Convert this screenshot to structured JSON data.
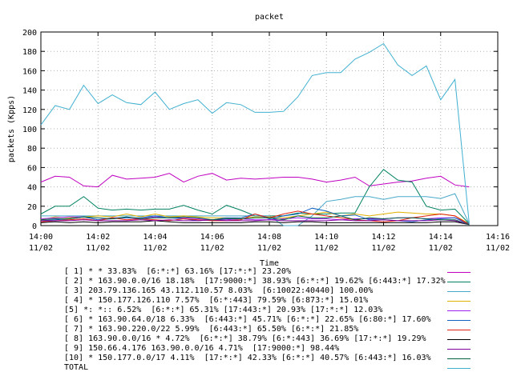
{
  "chart_data": {
    "type": "line",
    "title": "packet",
    "xlabel": "Time",
    "ylabel": "packets (Kpps)",
    "ylim": [
      0,
      200
    ],
    "yticks": [
      0,
      20,
      40,
      60,
      80,
      100,
      120,
      140,
      160,
      180,
      200
    ],
    "xlim": [
      "14:00",
      "14:16"
    ],
    "xticks": [
      {
        "time": "14:00",
        "date": "11/02"
      },
      {
        "time": "14:02",
        "date": "11/02"
      },
      {
        "time": "14:04",
        "date": "11/02"
      },
      {
        "time": "14:06",
        "date": "11/02"
      },
      {
        "time": "14:08",
        "date": "11/02"
      },
      {
        "time": "14:10",
        "date": "11/02"
      },
      {
        "time": "14:12",
        "date": "11/02"
      },
      {
        "time": "14:14",
        "date": "11/02"
      },
      {
        "time": "14:16",
        "date": "11/02"
      }
    ],
    "x": [
      "14:00:00",
      "14:00:30",
      "14:01:00",
      "14:01:30",
      "14:02:00",
      "14:02:30",
      "14:03:00",
      "14:03:30",
      "14:04:00",
      "14:04:30",
      "14:05:00",
      "14:05:30",
      "14:06:00",
      "14:06:30",
      "14:07:00",
      "14:07:30",
      "14:08:00",
      "14:08:30",
      "14:09:00",
      "14:09:30",
      "14:10:00",
      "14:10:30",
      "14:11:00",
      "14:11:30",
      "14:12:00",
      "14:12:30",
      "14:13:00",
      "14:13:30",
      "14:14:00",
      "14:14:30",
      "14:15:00"
    ],
    "grid": true,
    "legend_position": "bottom",
    "series": [
      {
        "name": "[ 1] * * 33.83%  [6:*:*] 63.16% [17:*:*] 23.20%",
        "color": "#c000c0",
        "values": [
          45,
          51,
          50,
          41,
          40,
          52,
          48,
          49,
          50,
          54,
          45,
          51,
          54,
          47,
          49,
          48,
          49,
          50,
          50,
          48,
          45,
          47,
          50,
          41,
          43,
          45,
          46,
          49,
          51,
          42,
          40
        ]
      },
      {
        "name": "[ 2] * 163.90.0.0/16 18.18%  [17:9000:*] 38.93% [6:*:*] 19.62% [6:443:*] 17.32%",
        "color": "#008060",
        "values": [
          12,
          20,
          20,
          30,
          18,
          16,
          17,
          16,
          17,
          17,
          21,
          16,
          12,
          21,
          16,
          10,
          10,
          10,
          13,
          12,
          12,
          13,
          13,
          40,
          58,
          47,
          45,
          20,
          16,
          17,
          2
        ]
      },
      {
        "name": "[ 3] 203.79.136.165 43.112.110.57 8.03%  [6:10022:40440] 100.00%",
        "color": "#48a8c8",
        "values": [
          10,
          10,
          10,
          10,
          10,
          10,
          10,
          10,
          10,
          10,
          10,
          10,
          10,
          10,
          10,
          10,
          10,
          0,
          0,
          10,
          25,
          27,
          30,
          30,
          27,
          30,
          30,
          30,
          28,
          33,
          2
        ]
      },
      {
        "name": "[ 4] * 150.177.126.110 7.57%  [6:*:443] 79.59% [6:873:*] 15.01%",
        "color": "#e0b000",
        "values": [
          6,
          9,
          8,
          9,
          10,
          9,
          12,
          9,
          12,
          9,
          10,
          9,
          8,
          8,
          7,
          9,
          9,
          8,
          10,
          12,
          14,
          10,
          12,
          10,
          12,
          14,
          13,
          12,
          12,
          10,
          2
        ]
      },
      {
        "name": "[5] *: *:: 6.52%  [6:*:*] 65.31% [17:443:*] 20.93% [17:*:*] 12.03%",
        "color": "#a020f0",
        "values": [
          7,
          8,
          9,
          9,
          6,
          8,
          8,
          7,
          9,
          8,
          8,
          7,
          6,
          6,
          7,
          6,
          6,
          7,
          8,
          7,
          7,
          6,
          7,
          7,
          7,
          8,
          8,
          7,
          8,
          8,
          1
        ]
      },
      {
        "name": "[ 6] * 163.90.64.0/18 6.33%  [6:443:*] 45.71% [6:*:*] 22.65% [6:80:*] 17.60%",
        "color": "#1060c0",
        "values": [
          5,
          6,
          7,
          9,
          6,
          7,
          8,
          8,
          10,
          8,
          7,
          5,
          6,
          8,
          8,
          12,
          7,
          10,
          12,
          18,
          15,
          10,
          11,
          6,
          6,
          5,
          4,
          6,
          7,
          8,
          2
        ]
      },
      {
        "name": "[ 7] * 163.90.220.0/22 5.99%  [6:443:*] 65.50% [6:*:*] 21.85%",
        "color": "#e02010",
        "values": [
          4,
          5,
          6,
          7,
          5,
          8,
          6,
          7,
          6,
          5,
          7,
          6,
          5,
          5,
          6,
          12,
          8,
          12,
          15,
          12,
          10,
          8,
          6,
          5,
          4,
          5,
          8,
          10,
          12,
          10,
          1
        ]
      },
      {
        "name": "[ 8] 163.90.0.0/16 * 4.72%  [6:*:*] 38.79% [6:*:443] 36.69% [17:*:*] 19.29%",
        "color": "#000000",
        "values": [
          3,
          4,
          3,
          4,
          3,
          4,
          4,
          4,
          5,
          4,
          3,
          3,
          3,
          3,
          3,
          4,
          4,
          3,
          4,
          4,
          3,
          3,
          3,
          3,
          3,
          3,
          3,
          3,
          4,
          4,
          1
        ]
      },
      {
        "name": "[ 9] 150.66.4.176 163.90.0.0/16 4.71%  [17:9000:*] 98.44%",
        "color": "#8000a0",
        "values": [
          5,
          5,
          5,
          6,
          5,
          5,
          5,
          6,
          5,
          6,
          5,
          5,
          6,
          5,
          5,
          5,
          6,
          5,
          5,
          5,
          5,
          6,
          5,
          5,
          6,
          5,
          5,
          5,
          6,
          5,
          1
        ]
      },
      {
        "name": "[10] * 150.177.0.0/17 4.11%  [17:*:*] 42.33% [6:*:*] 40.57% [6:443:*] 16.03%",
        "color": "#006040",
        "values": [
          6,
          7,
          7,
          9,
          8,
          7,
          9,
          7,
          8,
          8,
          9,
          8,
          6,
          7,
          7,
          8,
          8,
          6,
          10,
          8,
          8,
          10,
          6,
          8,
          7,
          8,
          8,
          7,
          6,
          6,
          1
        ]
      },
      {
        "name": "TOTAL",
        "color": "#40b0d0",
        "values": [
          104,
          124,
          120,
          145,
          126,
          135,
          127,
          125,
          138,
          120,
          126,
          130,
          116,
          127,
          125,
          117,
          117,
          118,
          133,
          155,
          158,
          158,
          172,
          179,
          188,
          166,
          155,
          165,
          130,
          151,
          2
        ]
      }
    ]
  }
}
